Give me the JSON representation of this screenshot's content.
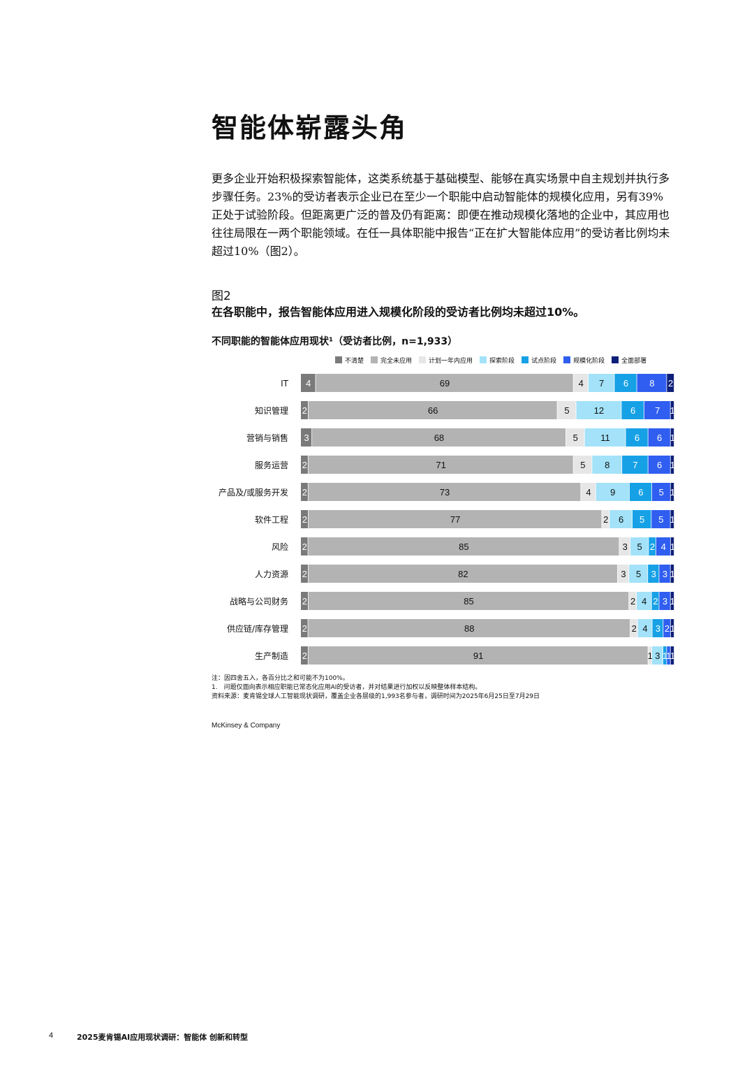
{
  "heading": "智能体崭露头角",
  "intro": "更多企业开始积极探索智能体，这类系统基于基础模型、能够在真实场景中自主规划并执行多步骤任务。23%的受访者表示企业已在至少一个职能中启动智能体的规模化应用，另有39%正处于试验阶段。但距离更广泛的普及仍有距离：即便在推动规模化落地的企业中，其应用也往往局限在一两个职能领域。在任一具体职能中报告“正在扩大智能体应用”的受访者比例均未超过10%（图2）。",
  "figure": {
    "label": "图2",
    "title": "在各职能中，报告智能体应用进入规模化阶段的受访者比例均未超过10%。"
  },
  "chart_data": {
    "type": "bar",
    "orientation": "horizontal",
    "stacked": true,
    "subtitle": "不同职能的智能体应用现状¹（受访者比例，n=1,933）",
    "legend_position": "top",
    "categories": [
      "IT",
      "知识管理",
      "营销与销售",
      "服务运营",
      "产品及/或服务开发",
      "软件工程",
      "风险",
      "人力资源",
      "战略与公司财务",
      "供应链/库存管理",
      "生产制造"
    ],
    "series": [
      {
        "name": "不清楚",
        "color": "#7a7a7a",
        "values": [
          4,
          2,
          3,
          2,
          2,
          2,
          2,
          2,
          2,
          2,
          2
        ]
      },
      {
        "name": "完全未应用",
        "color": "#b3b3b3",
        "values": [
          69,
          66,
          68,
          71,
          73,
          77,
          85,
          82,
          85,
          88,
          91
        ]
      },
      {
        "name": "计划一年内应用",
        "color": "#e6e6e6",
        "values": [
          4,
          5,
          5,
          5,
          4,
          2,
          3,
          3,
          2,
          2,
          1
        ]
      },
      {
        "name": "探索阶段",
        "color": "#a3e2f8",
        "values": [
          7,
          12,
          11,
          8,
          9,
          6,
          5,
          5,
          4,
          4,
          3
        ]
      },
      {
        "name": "试点阶段",
        "color": "#16a1e6",
        "values": [
          6,
          6,
          6,
          7,
          6,
          5,
          2,
          3,
          2,
          3,
          1
        ]
      },
      {
        "name": "规模化阶段",
        "color": "#2f5ef0",
        "values": [
          8,
          7,
          6,
          6,
          5,
          5,
          4,
          3,
          3,
          2,
          1
        ]
      },
      {
        "name": "全面部署",
        "color": "#0e1f78",
        "values": [
          2,
          1,
          1,
          1,
          1,
          1,
          1,
          1,
          1,
          1,
          1
        ]
      }
    ],
    "xlim": [
      0,
      100
    ]
  },
  "notes": {
    "line1": "注：因四舍五入，各百分比之和可能不为100%。",
    "line2": "1.　问题仅面向表示相应职能已常态化应用AI的受访者，并对结果进行加权以反映整体样本结构。",
    "source": "资料来源：麦肯锡全球人工智能现状调研，覆盖企业各层级的1,993名参与者，调研时间为2025年6月25日至7月29日"
  },
  "brand": "McKinsey & Company",
  "footer": {
    "page": "4",
    "title": "2025麦肯锡AI应用现状调研：智能体 创新和转型"
  }
}
